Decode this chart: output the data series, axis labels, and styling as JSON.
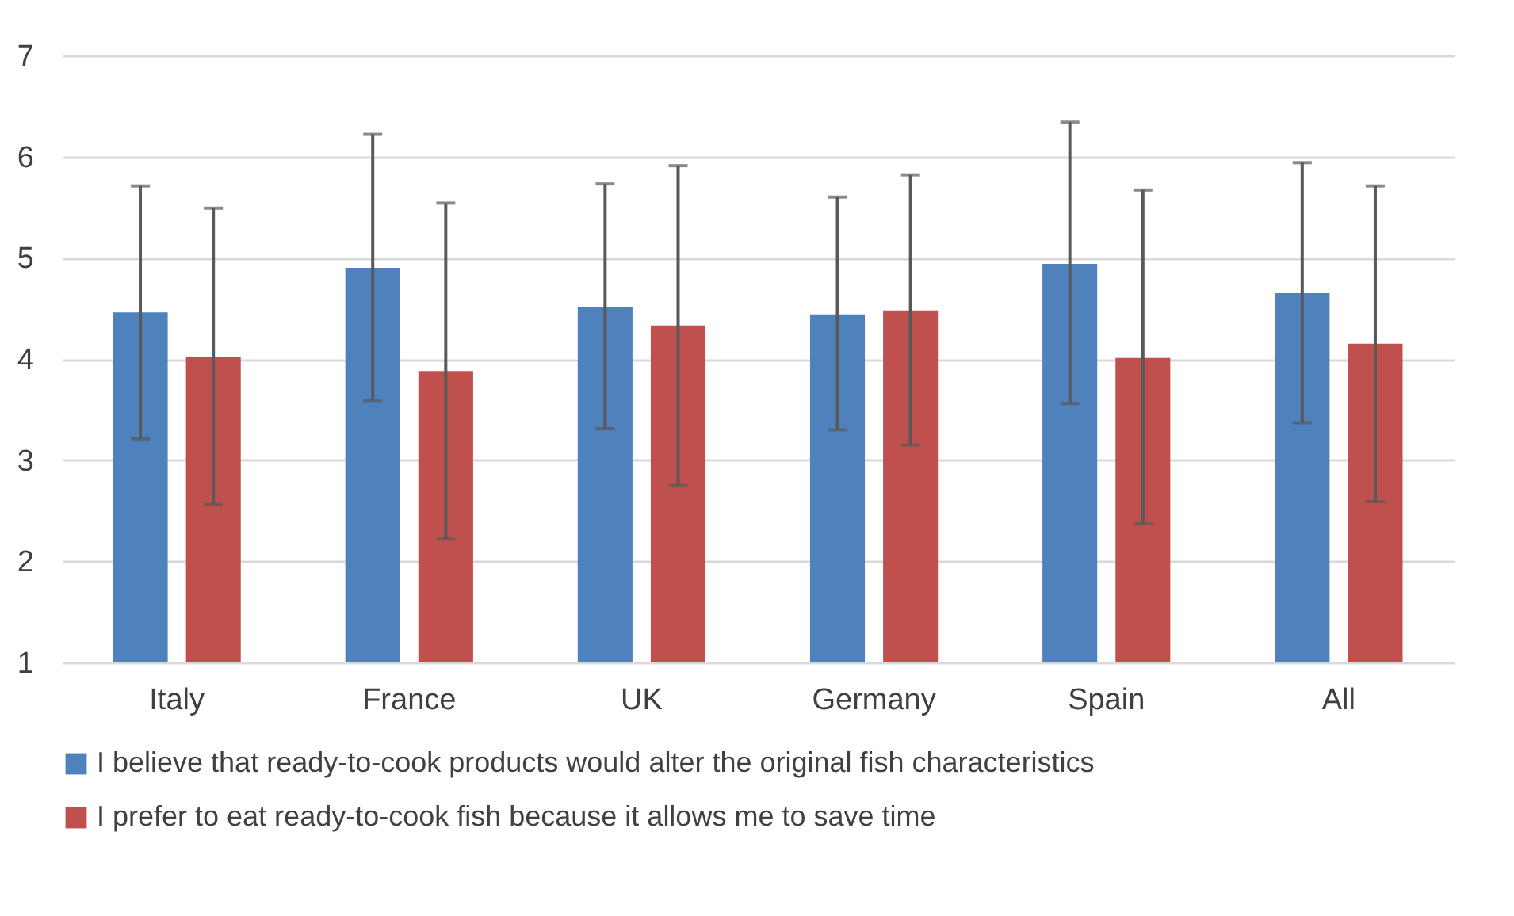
{
  "chart_data": {
    "type": "bar",
    "categories": [
      "Italy",
      "France",
      "UK",
      "Germany",
      "Spain",
      "All"
    ],
    "series": [
      {
        "name": "I believe that ready-to-cook products would alter the original fish characteristics",
        "color": "#4f81bd",
        "values": [
          4.46,
          4.9,
          4.51,
          4.44,
          4.94,
          4.65
        ],
        "errors": [
          [
            3.21,
            5.71
          ],
          [
            3.59,
            6.22
          ],
          [
            3.31,
            5.73
          ],
          [
            3.3,
            5.6
          ],
          [
            3.56,
            6.34
          ],
          [
            3.37,
            5.94
          ]
        ]
      },
      {
        "name": "I prefer to eat ready-to-cook fish because it allows me to save time",
        "color": "#c0504d",
        "values": [
          4.02,
          3.88,
          4.33,
          4.48,
          4.01,
          4.15
        ],
        "errors": [
          [
            2.56,
            5.49
          ],
          [
            2.22,
            5.54
          ],
          [
            2.75,
            5.91
          ],
          [
            3.15,
            5.82
          ],
          [
            2.37,
            5.67
          ],
          [
            2.59,
            5.71
          ]
        ]
      }
    ],
    "ylim": [
      1,
      7
    ],
    "yticks": [
      1,
      2,
      3,
      4,
      5,
      6,
      7
    ],
    "grid": "y",
    "legend": "bottom"
  }
}
